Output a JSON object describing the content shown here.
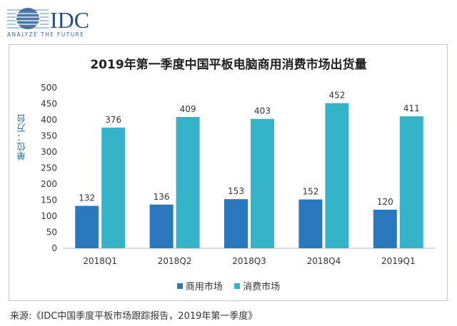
{
  "logo": {
    "text": "IDC",
    "tagline": "ANALYZE THE FUTURE"
  },
  "chart_data": {
    "type": "bar",
    "title": "2019年第一季度中国平板电脑商用消费市场出货量",
    "ylabel": "单位：万台",
    "xlabel": "",
    "categories": [
      "2018Q1",
      "2018Q2",
      "2018Q3",
      "2018Q4",
      "2019Q1"
    ],
    "series": [
      {
        "name": "商用市场",
        "values": [
          132,
          136,
          153,
          152,
          120
        ],
        "color": "#2a78bd"
      },
      {
        "name": "消费市场",
        "values": [
          376,
          409,
          403,
          452,
          411
        ],
        "color": "#35b3c8"
      }
    ],
    "ylim": [
      0,
      500
    ],
    "yticks": [
      0,
      50,
      100,
      150,
      200,
      250,
      300,
      350,
      400,
      450,
      500
    ],
    "grid": false,
    "legend": "bottom"
  },
  "source": "来源:《IDC中国季度平板市场跟踪报告，2019年第一季度》"
}
